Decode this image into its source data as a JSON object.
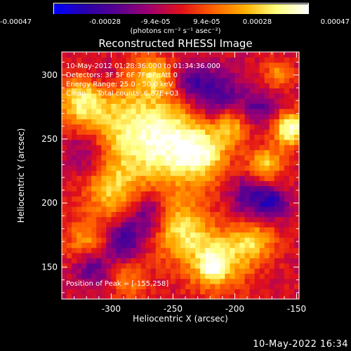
{
  "colorbar": {
    "tick_labels": [
      "-0.00047",
      "-0.00028",
      "-9.4e-05",
      "9.4e-05",
      "0.00028",
      "0.00047"
    ],
    "tick_values": [
      -0.00047,
      -0.00028,
      -9.4e-05,
      9.4e-05,
      0.00028,
      0.00047
    ],
    "units": "(photons cm⁻² s⁻¹ asec⁻²)",
    "colormap": [
      "#0000ff",
      "#2a00aa",
      "#5a0090",
      "#a00070",
      "#e0101a",
      "#ff6000",
      "#ffb000",
      "#ffff80",
      "#ffffff"
    ]
  },
  "title": "Reconstructed RHESSI Image",
  "annotations": {
    "line1": "10-May-2012 01:28:36.000 to 01:34:36.000",
    "line2": "Detectors: 3F 5F 6F 7F 8F, Att 0",
    "line3": "Energy Range: 25.0 - 50.0 keV",
    "line4": "Clean     Total counts: 6.87E+03",
    "peak": "Position of Peak = [-155,258]"
  },
  "timestamp": "10-May-2022 16:34",
  "chart_data": {
    "type": "heatmap",
    "title": "Reconstructed RHESSI Image",
    "xlabel": "Heliocentric X (arcsec)",
    "ylabel": "Heliocentric Y (arcsec)",
    "xlim": [
      -340,
      -148
    ],
    "ylim": [
      125,
      318
    ],
    "x_ticks": [
      -300,
      -250,
      -200,
      -150
    ],
    "y_ticks": [
      150,
      200,
      250,
      300
    ],
    "x_tick_labels": [
      "-300",
      "-250",
      "-200",
      "-150"
    ],
    "y_tick_labels": [
      "150",
      "200",
      "250",
      "300"
    ],
    "zlim": [
      -0.00047,
      0.00047
    ],
    "peak_position": [
      -155,
      258
    ],
    "blobs": [
      {
        "x": -155,
        "y": 258,
        "sigma": 9,
        "amp": 1.0
      },
      {
        "x": -290,
        "y": 260,
        "sigma": 28,
        "amp": 0.7
      },
      {
        "x": -250,
        "y": 245,
        "sigma": 22,
        "amp": 0.75
      },
      {
        "x": -225,
        "y": 238,
        "sigma": 14,
        "amp": 0.6
      },
      {
        "x": -300,
        "y": 210,
        "sigma": 15,
        "amp": 0.55
      },
      {
        "x": -325,
        "y": 280,
        "sigma": 12,
        "amp": 0.6
      },
      {
        "x": -320,
        "y": 170,
        "sigma": 12,
        "amp": 0.45
      },
      {
        "x": -245,
        "y": 180,
        "sigma": 16,
        "amp": 0.75
      },
      {
        "x": -215,
        "y": 155,
        "sigma": 16,
        "amp": 0.8
      },
      {
        "x": -218,
        "y": 150,
        "sigma": 6,
        "amp": 0.4
      },
      {
        "x": -185,
        "y": 170,
        "sigma": 12,
        "amp": 0.6
      },
      {
        "x": -175,
        "y": 230,
        "sigma": 10,
        "amp": 0.65
      },
      {
        "x": -203,
        "y": 260,
        "sigma": 10,
        "amp": 0.55
      },
      {
        "x": -265,
        "y": 300,
        "sigma": 10,
        "amp": 0.5
      },
      {
        "x": -165,
        "y": 300,
        "sigma": 8,
        "amp": 0.45
      },
      {
        "x": -285,
        "y": 140,
        "sigma": 10,
        "amp": 0.4
      },
      {
        "x": -270,
        "y": 190,
        "sigma": 12,
        "amp": -0.55
      },
      {
        "x": -290,
        "y": 170,
        "sigma": 10,
        "amp": -0.6
      },
      {
        "x": -320,
        "y": 240,
        "sigma": 14,
        "amp": -0.5
      },
      {
        "x": -215,
        "y": 285,
        "sigma": 14,
        "amp": -0.55
      },
      {
        "x": -185,
        "y": 205,
        "sigma": 12,
        "amp": -0.55
      },
      {
        "x": -168,
        "y": 200,
        "sigma": 8,
        "amp": -0.5
      },
      {
        "x": -315,
        "y": 150,
        "sigma": 10,
        "amp": -0.5
      },
      {
        "x": -235,
        "y": 295,
        "sigma": 10,
        "amp": -0.45
      },
      {
        "x": -180,
        "y": 275,
        "sigma": 10,
        "amp": -0.45
      },
      {
        "x": -305,
        "y": 300,
        "sigma": 10,
        "amp": -0.3
      }
    ]
  }
}
